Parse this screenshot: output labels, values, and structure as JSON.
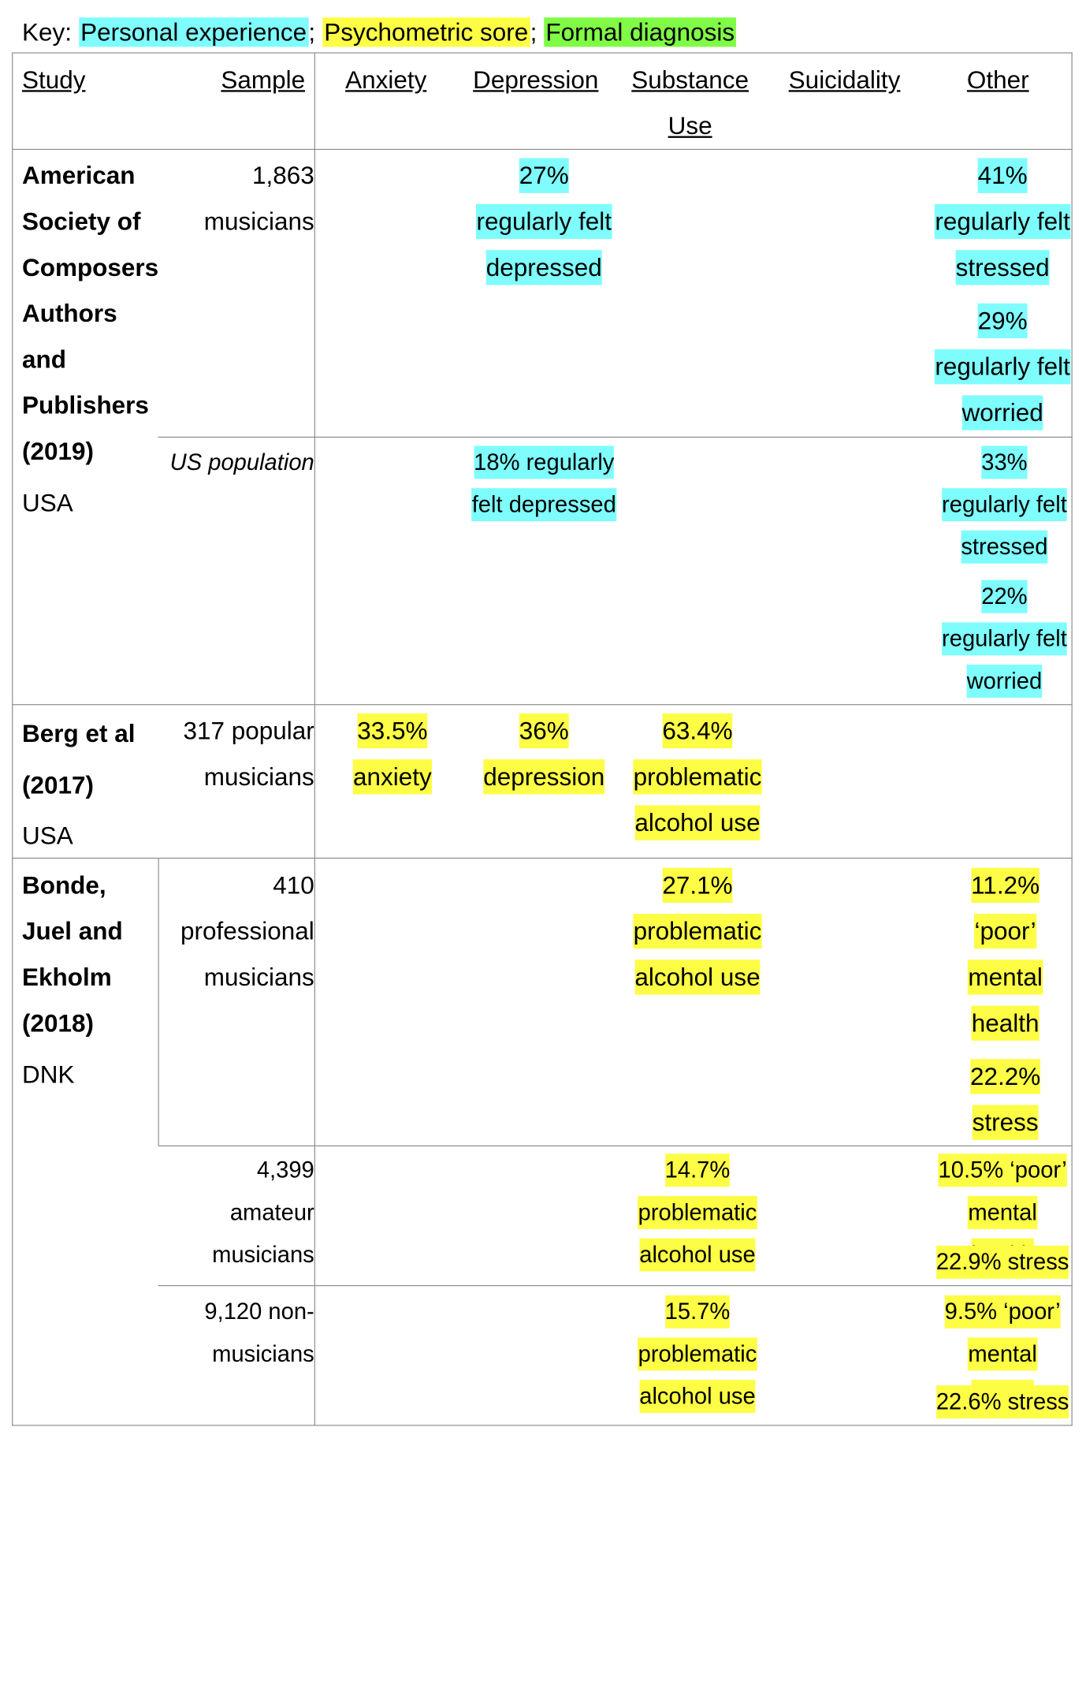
{
  "key": {
    "label": "Key:",
    "personal": "Personal experience",
    "psychometric": "Psychometric sore",
    "formal": "Formal diagnosis",
    "sep": ";",
    "colors": {
      "personal": "#7ffdfd",
      "psychometric": "#fdfd45",
      "formal": "#80fb46"
    }
  },
  "headers": {
    "study": "Study",
    "sample": "Sample",
    "anxiety": "Anxiety",
    "depression": "Depression",
    "substance": "Substance Use",
    "suicidality": "Suicidality",
    "other": "Other"
  },
  "studies": [
    {
      "name": "American Society of Composers, Authors and Publishers (2019)",
      "country": "USA",
      "rows": [
        {
          "sample": "1,863 musicians",
          "depression": "27% regularly felt depressed",
          "other1": "41% regularly felt stressed",
          "other2": "29% regularly felt worried"
        },
        {
          "sample": "US population",
          "depression": "18% regularly felt depressed",
          "other1": "33% regularly felt stressed",
          "other2": "22% regularly felt worried"
        }
      ]
    },
    {
      "name": "Berg et al (2017)",
      "country": "USA",
      "rows": [
        {
          "sample": "317 popular musicians",
          "anxiety": "33.5% anxiety",
          "depression": "36% depression",
          "substance": "63.4% problematic alcohol use"
        }
      ]
    },
    {
      "name": "Bonde, Juel and Ekholm (2018)",
      "country": "DNK",
      "rows": [
        {
          "sample": "410 professional musicians",
          "substance": "27.1% problematic alcohol use",
          "other1": "11.2% ‘poor’ mental health",
          "other2": "22.2% stress"
        },
        {
          "sample": "4,399 amateur musicians",
          "substance": "14.7% problematic alcohol use",
          "other1": "10.5% ‘poor’ mental health",
          "other2": "22.9% stress"
        },
        {
          "sample": "9,120 non-musicians",
          "substance": "15.7% problematic alcohol use",
          "other1": "9.5% ‘poor’ mental health",
          "other2": "22.6% stress"
        }
      ]
    }
  ]
}
